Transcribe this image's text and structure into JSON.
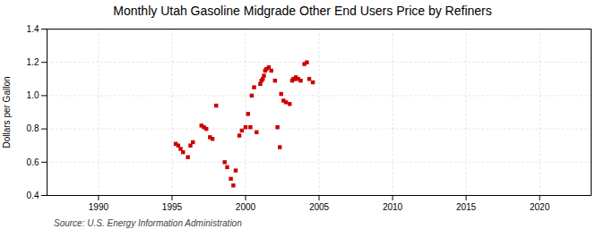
{
  "chart_data": {
    "type": "scatter",
    "title": "Monthly Utah Gasoline Midgrade Other End Users Price by Refiners",
    "ylabel": "Dollars per Gallon",
    "source": "Source: U.S. Energy Information Administration",
    "color": "#cc0000",
    "marker": "square",
    "grid": true,
    "xlim": [
      1986.5,
      2023.5
    ],
    "ylim": [
      0.4,
      1.4
    ],
    "xticks": [
      1990,
      1995,
      2000,
      2005,
      2010,
      2015,
      2020
    ],
    "yticks": [
      0.4,
      0.6,
      0.8,
      {
        "value": 1.0,
        "label": "1.0"
      },
      1.2,
      1.4
    ],
    "x": [
      1995.25,
      1995.42,
      1995.58,
      1995.75,
      1996.08,
      1996.25,
      1996.42,
      1997.0,
      1997.17,
      1997.33,
      1997.58,
      1997.75,
      1998.0,
      1998.58,
      1998.75,
      1999.0,
      1999.17,
      1999.33,
      1999.58,
      1999.75,
      2000.0,
      2000.17,
      2000.33,
      2000.42,
      2000.58,
      2000.75,
      2001.0,
      2001.08,
      2001.17,
      2001.25,
      2001.33,
      2001.42,
      2001.58,
      2001.75,
      2002.0,
      2002.17,
      2002.33,
      2002.42,
      2002.58,
      2002.75,
      2003.0,
      2003.17,
      2003.25,
      2003.33,
      2003.42,
      2003.58,
      2003.75,
      2004.0,
      2004.17,
      2004.33,
      2004.58
    ],
    "values": [
      0.71,
      0.7,
      0.68,
      0.66,
      0.63,
      0.7,
      0.72,
      0.82,
      0.81,
      0.8,
      0.75,
      0.74,
      0.94,
      0.6,
      0.57,
      0.5,
      0.46,
      0.55,
      0.76,
      0.79,
      0.81,
      0.89,
      0.81,
      1.0,
      1.05,
      0.78,
      1.07,
      1.09,
      1.1,
      1.12,
      1.15,
      1.16,
      1.17,
      1.15,
      1.09,
      0.81,
      0.69,
      1.01,
      0.97,
      0.96,
      0.95,
      1.09,
      1.1,
      1.1,
      1.11,
      1.1,
      1.09,
      1.19,
      1.2,
      1.1,
      1.08
    ]
  }
}
